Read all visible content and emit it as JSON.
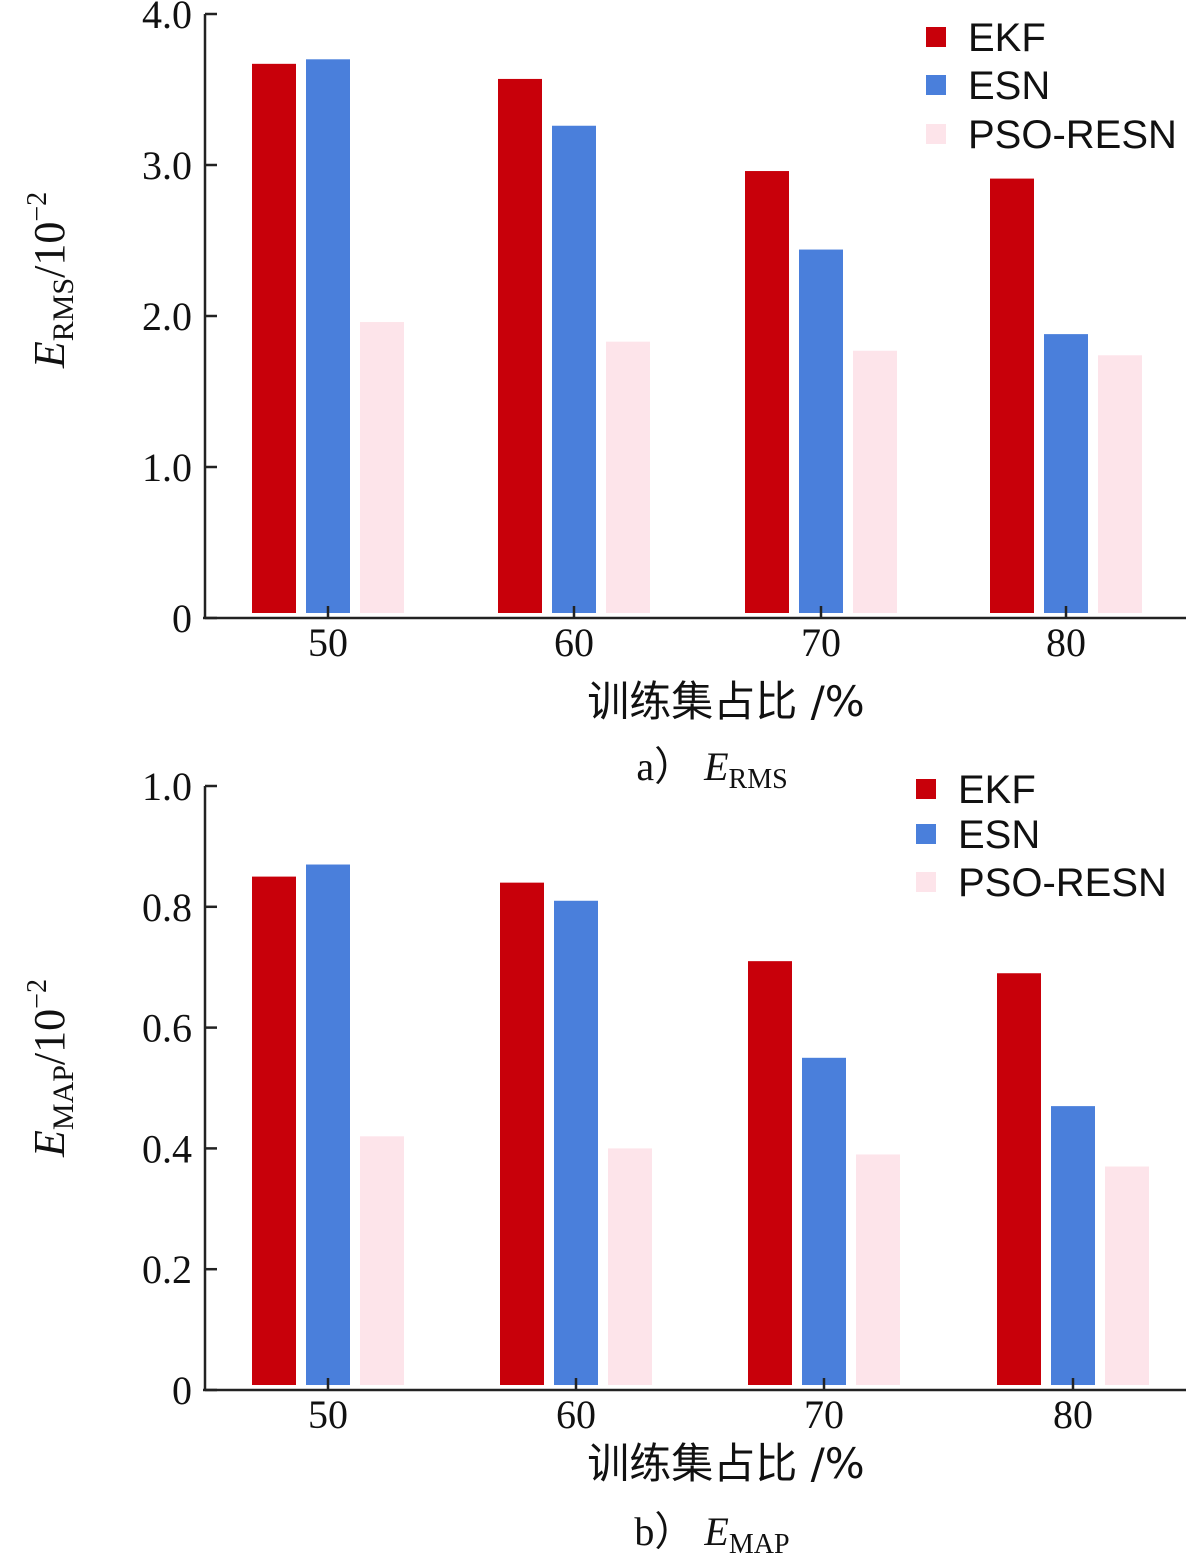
{
  "chart_data": [
    {
      "type": "bar",
      "panel": "a",
      "categories": [
        "50",
        "60",
        "70",
        "80"
      ],
      "series": [
        {
          "name": "EKF",
          "color": "#c8000a",
          "values": [
            3.67,
            3.57,
            2.96,
            2.91
          ]
        },
        {
          "name": "ESN",
          "color": "#4a7fdb",
          "values": [
            3.7,
            3.26,
            2.44,
            1.88
          ]
        },
        {
          "name": "PSO-RESN",
          "color": "#fde4ea",
          "values": [
            1.96,
            1.83,
            1.77,
            1.74
          ]
        }
      ],
      "ylim": [
        0,
        4.0
      ],
      "yticks": [
        "0",
        "1.0",
        "2.0",
        "3.0",
        "4.0"
      ],
      "xlabel": "训练集占比 /%",
      "ylabel": {
        "symbol": "E",
        "subscript": "RMS",
        "unit": "/10",
        "exponent": "−2"
      },
      "caption": {
        "prefix": "a）",
        "symbol": "E",
        "subscript": "RMS"
      },
      "legend_position": "top-right"
    },
    {
      "type": "bar",
      "panel": "b",
      "categories": [
        "50",
        "60",
        "70",
        "80"
      ],
      "series": [
        {
          "name": "EKF",
          "color": "#c8000a",
          "values": [
            0.85,
            0.84,
            0.71,
            0.69
          ]
        },
        {
          "name": "ESN",
          "color": "#4a7fdb",
          "values": [
            0.87,
            0.81,
            0.55,
            0.47
          ]
        },
        {
          "name": "PSO-RESN",
          "color": "#fde4ea",
          "values": [
            0.42,
            0.4,
            0.39,
            0.37
          ]
        }
      ],
      "ylim": [
        0,
        1.0
      ],
      "yticks": [
        "0",
        "0.2",
        "0.4",
        "0.6",
        "0.8",
        "1.0"
      ],
      "xlabel": "训练集占比 /%",
      "ylabel": {
        "symbol": "E",
        "subscript": "MAP",
        "unit": "/10",
        "exponent": "−2"
      },
      "caption": {
        "prefix": "b）",
        "symbol": "E",
        "subscript": "MAP"
      },
      "legend_position": "top-right"
    }
  ]
}
